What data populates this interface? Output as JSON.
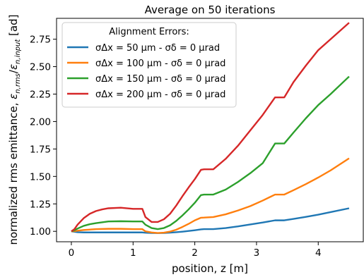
{
  "chart_data": {
    "type": "line",
    "title": "Average on 50 iterations",
    "xlabel": "position, z [m]",
    "ylabel": "normalized rms emittance, εn,rms/εn,input [ad]",
    "xlim": [
      -0.24,
      4.73
    ],
    "ylim": [
      0.905,
      2.94
    ],
    "x_ticks": [
      0,
      1,
      2,
      3,
      4
    ],
    "y_ticks": [
      1.0,
      1.25,
      1.5,
      1.75,
      2.0,
      2.25,
      2.5,
      2.75
    ],
    "grid": false,
    "legend": {
      "title": "Alignment Errors:",
      "position": "top-left"
    },
    "series": [
      {
        "name": "σΔx = 50 μm - σδ = 0 μrad",
        "color": "#1f77b4",
        "x": [
          0,
          0.1,
          0.2,
          0.4,
          0.6,
          0.8,
          1.0,
          1.15,
          1.2,
          1.3,
          1.4,
          1.5,
          1.6,
          1.7,
          1.8,
          1.9,
          2.0,
          2.1,
          2.15,
          2.3,
          2.5,
          2.7,
          2.9,
          3.1,
          3.3,
          3.45,
          3.6,
          3.8,
          4.0,
          4.2,
          4.5
        ],
        "y": [
          1.0,
          0.992,
          0.99,
          0.99,
          0.99,
          0.99,
          0.99,
          0.99,
          0.987,
          0.985,
          0.984,
          0.985,
          0.988,
          0.992,
          0.997,
          1.003,
          1.01,
          1.018,
          1.02,
          1.02,
          1.03,
          1.045,
          1.063,
          1.08,
          1.1,
          1.1,
          1.113,
          1.132,
          1.152,
          1.175,
          1.21
        ]
      },
      {
        "name": "σΔx = 100 μm - σδ = 0 μrad",
        "color": "#ff7f0e",
        "x": [
          0,
          0.05,
          0.1,
          0.2,
          0.4,
          0.6,
          0.8,
          1.0,
          1.15,
          1.2,
          1.3,
          1.4,
          1.5,
          1.6,
          1.7,
          1.8,
          1.9,
          2.0,
          2.1,
          2.15,
          2.3,
          2.5,
          2.7,
          2.9,
          3.1,
          3.3,
          3.45,
          3.6,
          3.8,
          4.0,
          4.2,
          4.5
        ],
        "y": [
          1.0,
          1.002,
          1.006,
          1.012,
          1.02,
          1.023,
          1.023,
          1.02,
          1.02,
          1.0,
          0.99,
          0.985,
          0.988,
          0.998,
          1.015,
          1.04,
          1.068,
          1.1,
          1.124,
          1.125,
          1.13,
          1.155,
          1.19,
          1.23,
          1.28,
          1.335,
          1.335,
          1.375,
          1.43,
          1.49,
          1.555,
          1.665
        ]
      },
      {
        "name": "σΔx = 150 μm - σδ = 0 μrad",
        "color": "#2ca02c",
        "x": [
          0,
          0.05,
          0.1,
          0.2,
          0.3,
          0.4,
          0.6,
          0.8,
          1.0,
          1.15,
          1.2,
          1.3,
          1.4,
          1.5,
          1.6,
          1.7,
          1.8,
          1.9,
          2.0,
          2.1,
          2.15,
          2.3,
          2.5,
          2.7,
          2.9,
          3.1,
          3.3,
          3.45,
          3.6,
          3.8,
          4.0,
          4.2,
          4.5
        ],
        "y": [
          1.0,
          1.01,
          1.025,
          1.05,
          1.065,
          1.075,
          1.09,
          1.092,
          1.09,
          1.09,
          1.06,
          1.03,
          1.02,
          1.03,
          1.055,
          1.095,
          1.145,
          1.2,
          1.26,
          1.33,
          1.335,
          1.335,
          1.38,
          1.45,
          1.53,
          1.62,
          1.8,
          1.8,
          1.9,
          2.03,
          2.15,
          2.25,
          2.41
        ]
      },
      {
        "name": "σΔx = 200 μm - σδ = 0 μrad",
        "color": "#d62728",
        "x": [
          0,
          0.05,
          0.1,
          0.2,
          0.3,
          0.4,
          0.5,
          0.6,
          0.8,
          1.0,
          1.15,
          1.2,
          1.3,
          1.4,
          1.5,
          1.6,
          1.7,
          1.8,
          1.9,
          2.0,
          2.1,
          2.15,
          2.3,
          2.5,
          2.7,
          2.9,
          3.1,
          3.3,
          3.45,
          3.6,
          3.8,
          4.0,
          4.2,
          4.5
        ],
        "y": [
          1.0,
          1.02,
          1.06,
          1.12,
          1.16,
          1.185,
          1.2,
          1.21,
          1.215,
          1.205,
          1.205,
          1.13,
          1.085,
          1.085,
          1.11,
          1.16,
          1.235,
          1.32,
          1.4,
          1.475,
          1.56,
          1.565,
          1.565,
          1.66,
          1.78,
          1.92,
          2.06,
          2.22,
          2.22,
          2.36,
          2.51,
          2.65,
          2.75,
          2.9
        ]
      }
    ]
  }
}
